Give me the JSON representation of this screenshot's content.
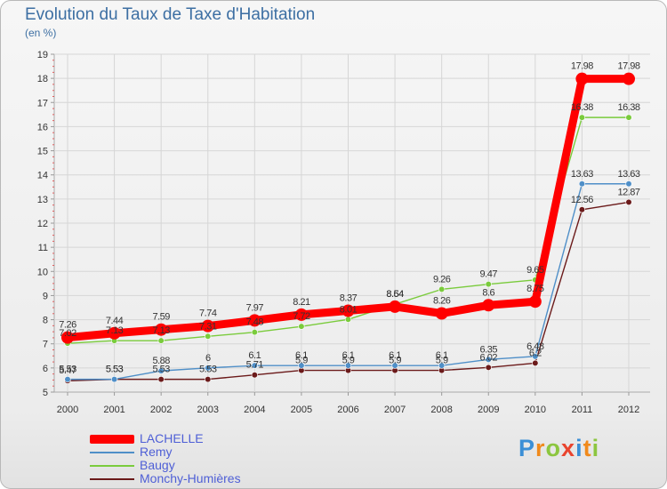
{
  "title": "Evolution du Taux de Taxe d'Habitation",
  "unit_label": "(en %)",
  "logo": {
    "text": "Proxiti",
    "colors": [
      "#3b8fd6",
      "#f08a1c",
      "#8cc63f",
      "#e9442e",
      "#3b8fd6",
      "#f08a1c",
      "#8cc63f"
    ]
  },
  "chart_data": {
    "type": "line",
    "title": "Evolution du Taux de Taxe d'Habitation",
    "ylabel": "(en %)",
    "ylim": [
      5,
      19
    ],
    "yticks": [
      5,
      6,
      7,
      8,
      9,
      10,
      11,
      12,
      13,
      14,
      15,
      16,
      17,
      18,
      19
    ],
    "x": [
      "2000",
      "2001",
      "2002",
      "2003",
      "2004",
      "2005",
      "2006",
      "2007",
      "2008",
      "2009",
      "2010",
      "2011",
      "2012"
    ],
    "series": [
      {
        "name": "LACHELLE",
        "color": "#ff0000",
        "values": [
          7.26,
          7.44,
          7.59,
          7.74,
          7.97,
          8.21,
          8.37,
          8.54,
          8.26,
          8.6,
          8.75,
          17.98,
          17.98
        ],
        "labels": [
          "7.26",
          "7.44",
          "7.59",
          "7.74",
          "7.97",
          "8.21",
          "8.37",
          "8.54",
          "8.26",
          "8.6",
          "8.75",
          "17.98",
          "17.98"
        ]
      },
      {
        "name": "Remy",
        "color": "#4f8fc8",
        "values": [
          5.53,
          5.53,
          5.88,
          6.0,
          6.1,
          6.1,
          6.1,
          6.1,
          6.1,
          6.35,
          6.48,
          13.63,
          13.63
        ],
        "labels": [
          "5.53",
          "5.53",
          "5.88",
          "6",
          "6.1",
          "6.1",
          "6.1",
          "6.1",
          "6.1",
          "6.35",
          "6.48",
          "13.63",
          "13.63"
        ]
      },
      {
        "name": "Baugy",
        "color": "#7acb3c",
        "values": [
          7.02,
          7.13,
          7.13,
          7.31,
          7.48,
          7.72,
          8.01,
          8.64,
          9.26,
          9.47,
          9.65,
          16.38,
          16.38
        ],
        "labels": [
          "7.02",
          "7.13",
          "7.13",
          "7.31",
          "7.48",
          "7.72",
          "8.01",
          "8.64",
          "9.26",
          "9.47",
          "9.65",
          "16.38",
          "16.38"
        ]
      },
      {
        "name": "Monchy-Humières",
        "color": "#6b1a1a",
        "values": [
          5.47,
          5.53,
          5.53,
          5.53,
          5.71,
          5.9,
          5.9,
          5.9,
          5.9,
          6.02,
          6.2,
          12.56,
          12.87
        ],
        "labels": [
          "5.47",
          "5.53",
          "5.53",
          "5.53",
          "5.71",
          "5.9",
          "5.9",
          "5.9",
          "5.9",
          "6.02",
          "6.2",
          "12.56",
          "12.87"
        ]
      }
    ]
  }
}
